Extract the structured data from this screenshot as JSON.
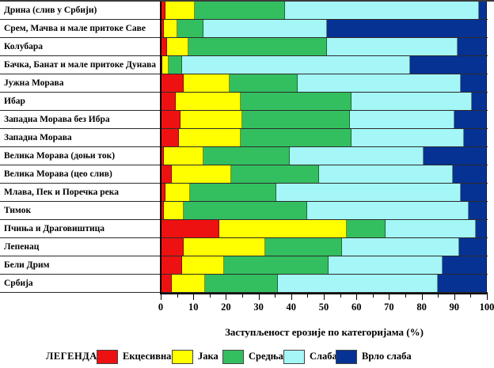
{
  "chart_data": {
    "type": "bar",
    "orientation": "horizontal-stacked",
    "title": "",
    "xlabel": "Заступљеност ерозије по категоријама (%)",
    "ylabel": "",
    "xlim": [
      0,
      100
    ],
    "x_ticks": [
      0,
      10,
      20,
      30,
      40,
      50,
      60,
      70,
      80,
      90,
      100
    ],
    "minor_tick_step": 5,
    "grid": false,
    "legend_position": "bottom",
    "legend_title": "ЛЕГЕНДА:",
    "categories": [
      "Дрина (слив у Србији)",
      "Срем, Мачва и мале притоке Саве",
      "Колубара",
      "Бачка, Банат и мале притоке Дунава",
      "Јужна Морава",
      "Ибар",
      "Западна Морава без Ибра",
      "Западна Морава",
      "Велика Морава (доњи ток)",
      "Велика Морава (цео слив)",
      "Млава, Пек и Поречка река",
      "Тимок",
      "Пчиња и Драговиштица",
      "Лепенац",
      "Бели Дрим",
      "Србија"
    ],
    "series": [
      {
        "name": "Екцесивна",
        "color": "#ee1111",
        "values": [
          1.5,
          1,
          2,
          0.5,
          7,
          4.5,
          6,
          5.5,
          1,
          3.5,
          1.5,
          1,
          18,
          7,
          6.5,
          3.5
        ]
      },
      {
        "name": "Јака",
        "color": "#ffff00",
        "values": [
          9,
          4,
          6.5,
          2,
          14,
          20,
          19,
          19,
          12,
          18,
          7.5,
          6,
          39,
          25,
          13,
          10
        ]
      },
      {
        "name": "Средња",
        "color": "#33bf5f",
        "values": [
          27.5,
          8,
          42.5,
          4,
          21,
          34,
          33,
          34,
          26.5,
          27,
          26.5,
          38,
          12,
          23.5,
          32,
          22.5
        ]
      },
      {
        "name": "Слаба",
        "color": "#a5f6f7",
        "values": [
          59.5,
          38,
          40,
          70,
          50,
          37,
          32,
          34.5,
          41,
          41,
          56.5,
          49.5,
          27.5,
          36,
          35,
          49
        ]
      },
      {
        "name": "Врло слаба",
        "color": "#063293",
        "values": [
          2.5,
          49,
          9,
          23.5,
          8,
          4.5,
          10,
          7,
          19.5,
          10.5,
          8,
          5.5,
          3.5,
          8.5,
          13.5,
          15
        ]
      }
    ]
  }
}
